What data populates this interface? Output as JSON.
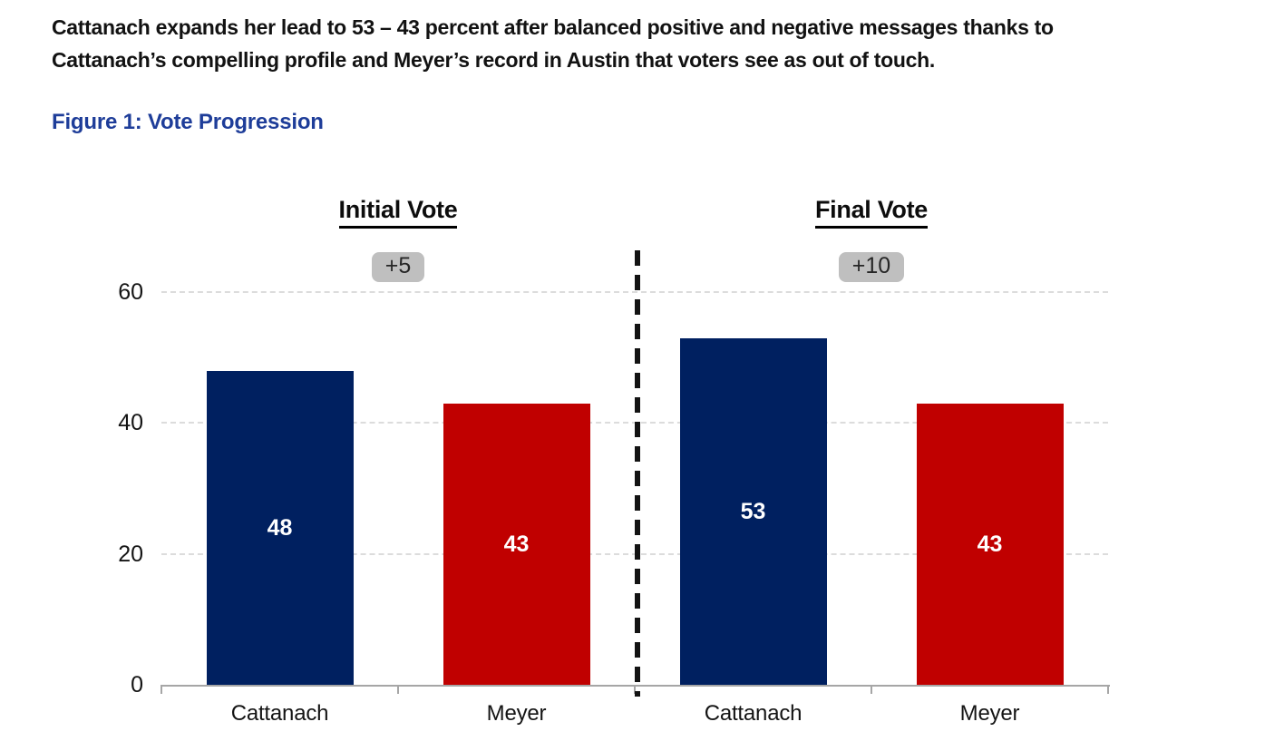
{
  "memo": {
    "lines": [
      "Cattanach expands her lead to 53 – 43 percent after balanced positive and negative messages thanks to",
      "Cattanach’s compelling profile and Meyer’s record in Austin that voters see as out of touch."
    ]
  },
  "figure_title": "Figure 1: Vote Progression",
  "colors": {
    "cattanach_bar": "#002060",
    "meyer_bar": "#c00000",
    "badge_bg": "#bfbfbf",
    "figure_title_blue": "#1e3d99",
    "value_label_text": "#ffffff"
  },
  "chart_data": {
    "type": "bar",
    "title": "Figure 1: Vote Progression",
    "groups": [
      {
        "label": "Initial Vote",
        "lead_badge": "+5",
        "bars": [
          {
            "category": "Cattanach",
            "value": 48,
            "color": "#002060"
          },
          {
            "category": "Meyer",
            "value": 43,
            "color": "#c00000"
          }
        ]
      },
      {
        "label": "Final Vote",
        "lead_badge": "+10",
        "bars": [
          {
            "category": "Cattanach",
            "value": 53,
            "color": "#002060"
          },
          {
            "category": "Meyer",
            "value": 43,
            "color": "#c00000"
          }
        ]
      }
    ],
    "y_axis": {
      "ticks": [
        0,
        20,
        40,
        60
      ],
      "range": [
        0,
        60
      ],
      "gridlines": "dashed"
    },
    "legend": "none",
    "value_labels": "centered inside bars, white bold",
    "divider": "black dashed vertical line between Initial Vote and Final Vote groups"
  }
}
